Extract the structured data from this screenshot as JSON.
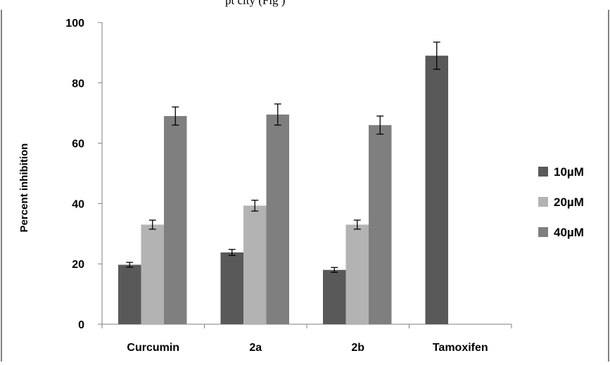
{
  "page_snippet": "pt  city (Fig  )",
  "chart_data": {
    "type": "bar",
    "title": "",
    "xlabel": "",
    "ylabel": "Percent inhibition",
    "ylim": [
      0,
      100
    ],
    "yticks": [
      "0",
      "20",
      "40",
      "60",
      "80",
      "100"
    ],
    "categories": [
      "Curcumin",
      "2a",
      "2b",
      "Tamoxifen"
    ],
    "series": [
      {
        "name": "10µM",
        "color": "#595959",
        "values": [
          19.7,
          23.8,
          18.0,
          89.0
        ],
        "errors": [
          0.8,
          1.0,
          0.8,
          4.5
        ]
      },
      {
        "name": "20µM",
        "color": "#b3b3b3",
        "values": [
          33.0,
          39.3,
          33.0,
          null
        ],
        "errors": [
          1.5,
          1.8,
          1.5,
          null
        ]
      },
      {
        "name": "40µM",
        "color": "#7f7f7f",
        "values": [
          69.0,
          69.5,
          66.0,
          null
        ],
        "errors": [
          3.0,
          3.5,
          3.0,
          null
        ]
      }
    ],
    "legend_position": "right",
    "grid": false
  }
}
